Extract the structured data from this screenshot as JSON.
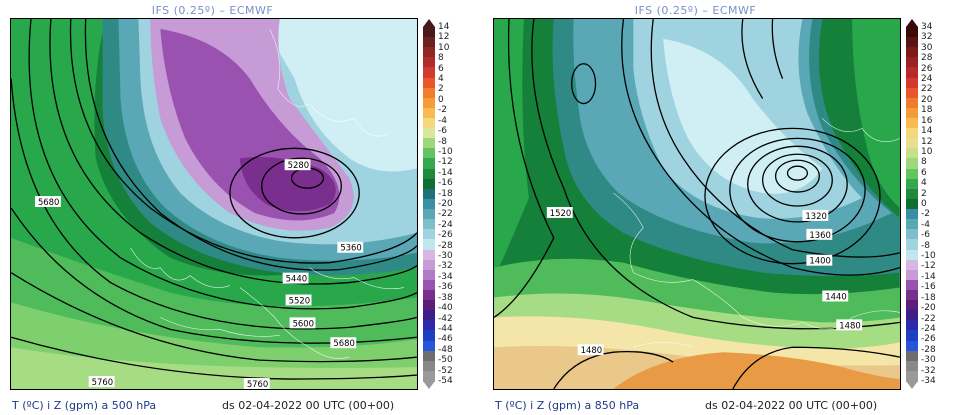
{
  "panels": [
    {
      "title": "IFS (0.25º) – ECMWF",
      "footer_var": "T (ºC) i Z (gpm) a 500 hPa",
      "footer_date": "ds 02-04-2022 00 UTC (00+00)",
      "colorbar": {
        "top_color": "#4a1a1a",
        "bottom_color": "#9a9a9a",
        "labels": [
          "14",
          "12",
          "10",
          "8",
          "6",
          "4",
          "2",
          "0",
          "-2",
          "-4",
          "-6",
          "-8",
          "-10",
          "-12",
          "-14",
          "-16",
          "-18",
          "-20",
          "-22",
          "-24",
          "-26",
          "-28",
          "-30",
          "-32",
          "-34",
          "-36",
          "-38",
          "-40",
          "-42",
          "-44",
          "-46",
          "-48",
          "-50",
          "-52",
          "-54"
        ]
      },
      "contour_labels": [
        "5280",
        "5360",
        "5440",
        "5520",
        "5600",
        "5680",
        "5680",
        "5760",
        "5760"
      ]
    },
    {
      "title": "IFS (0.25º) – ECMWF",
      "footer_var": "T (ºC) i Z (gpm) a 850 hPa",
      "footer_date": "ds 02-04-2022 00 UTC (00+00)",
      "colorbar": {
        "top_color": "#3a0a0a",
        "bottom_color": "#9a9a9a",
        "labels": [
          "34",
          "32",
          "30",
          "28",
          "26",
          "24",
          "22",
          "20",
          "18",
          "16",
          "14",
          "12",
          "10",
          "8",
          "6",
          "4",
          "2",
          "0",
          "-2",
          "-4",
          "-6",
          "-8",
          "-10",
          "-12",
          "-14",
          "-16",
          "-18",
          "-20",
          "-22",
          "-24",
          "-26",
          "-28",
          "-30",
          "-32",
          "-34"
        ]
      },
      "contour_labels": [
        "1520",
        "1320",
        "1360",
        "1400",
        "1440",
        "1480",
        "1480"
      ]
    }
  ],
  "colors": {
    "deep_purple": "#7a2e8e",
    "purple": "#9a52b0",
    "light_purple": "#c79bd6",
    "pale_cyan": "#cfeff4",
    "light_blue": "#9fd3e0",
    "teal": "#5aa7b6",
    "dark_teal": "#2f8a86",
    "dark_green": "#14803a",
    "green": "#28a84b",
    "light_green": "#68c768",
    "yellow_green": "#c9e08a",
    "pale_yellow": "#f3e6a8",
    "tan": "#e9c88a",
    "orange": "#e89a45",
    "dark_orange": "#db7d2a"
  }
}
